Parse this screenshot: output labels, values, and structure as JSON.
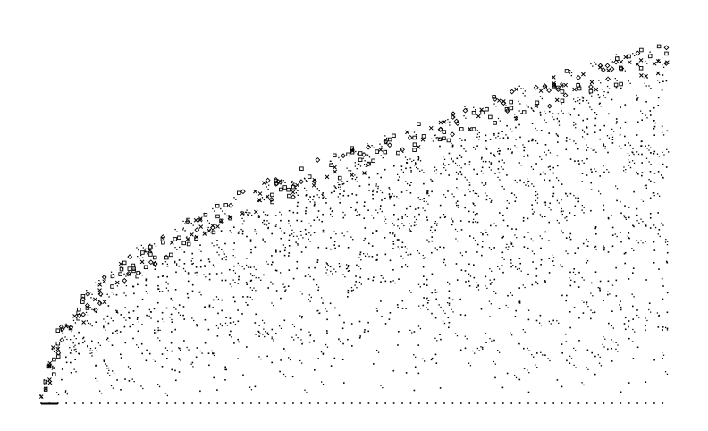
{
  "figure": {
    "background": "#ffffff",
    "mark_color": "#000000"
  },
  "chart_data": {
    "type": "scatter",
    "title": "",
    "xlabel": "",
    "ylabel": "",
    "axes_visible": false,
    "grid": false,
    "legend": "none",
    "xlim": [
      1,
      150
    ],
    "ylim": [
      0,
      100
    ],
    "x_start": 1,
    "x_end": 150,
    "x_step": 1,
    "envelope_top_y_at_x": [
      [
        1,
        2
      ],
      [
        5,
        20
      ],
      [
        10,
        28
      ],
      [
        20,
        38
      ],
      [
        30,
        46
      ],
      [
        40,
        52
      ],
      [
        50,
        57
      ],
      [
        60,
        62
      ],
      [
        70,
        66
      ],
      [
        80,
        70
      ],
      [
        90,
        74
      ],
      [
        100,
        78
      ],
      [
        110,
        82
      ],
      [
        120,
        86
      ],
      [
        130,
        90
      ],
      [
        140,
        93
      ],
      [
        150,
        96
      ]
    ],
    "baseline": {
      "y": 0,
      "mark": "dot"
    },
    "marker_kinds": [
      "dot",
      "dot-pair",
      "small-square",
      "cross",
      "diamond"
    ]
  }
}
